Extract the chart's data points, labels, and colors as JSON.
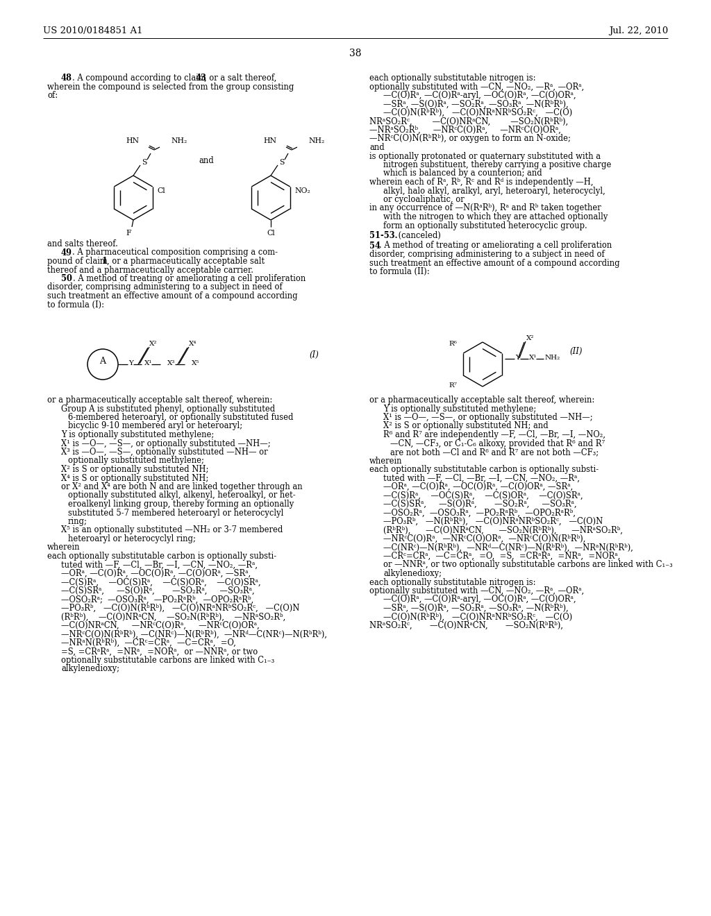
{
  "bg_color": "#ffffff",
  "figsize": [
    10.24,
    13.2
  ],
  "dpi": 100,
  "header_left": "US 2010/0184851 A1",
  "header_right": "Jul. 22, 2010",
  "page_num": "38"
}
